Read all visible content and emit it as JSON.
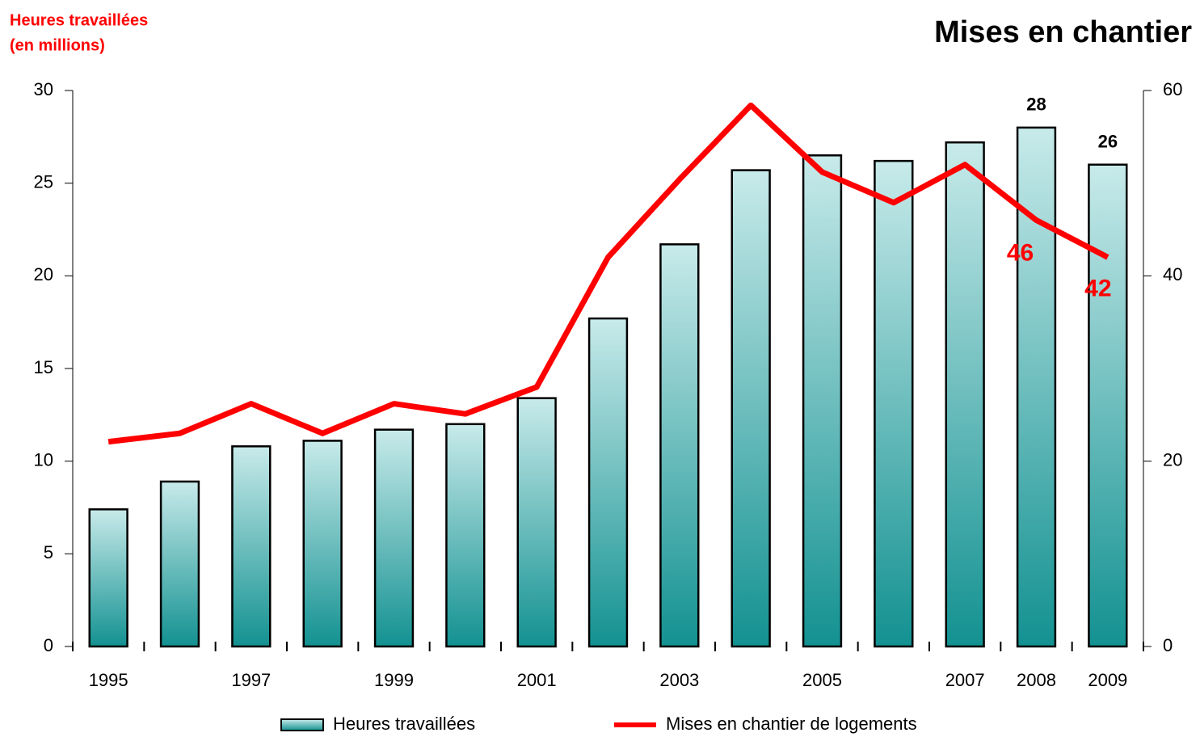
{
  "chart_data": {
    "type": "bar_line",
    "title": "Mises en chantier",
    "y_label": [
      "Heures travaillées",
      "(en millions)"
    ],
    "categories": [
      "1995",
      null,
      "1997",
      null,
      "1999",
      null,
      "2001",
      null,
      "2003",
      null,
      "2005",
      null,
      "2007",
      "2008",
      "2009"
    ],
    "series": [
      {
        "name": "Heures travaillées",
        "type": "bar",
        "color": "#139191",
        "values": [
          7.4,
          8.9,
          10.8,
          11.1,
          11.7,
          12.0,
          13.4,
          17.7,
          21.7,
          25.7,
          26.5,
          26.2,
          27.2,
          28,
          26
        ],
        "value_labels": [
          null,
          null,
          null,
          null,
          null,
          null,
          null,
          null,
          null,
          null,
          null,
          null,
          null,
          "28",
          "26"
        ]
      },
      {
        "name": "Mises en chantier de logements",
        "type": "line",
        "axis": "y2",
        "color": "#ff0000",
        "values": [
          22.1,
          23.0,
          26.2,
          23.0,
          26.2,
          25.1,
          28.0,
          42.0,
          50.4,
          58.4,
          51.2,
          47.9,
          52.0,
          46,
          42
        ],
        "value_labels": [
          null,
          null,
          null,
          null,
          null,
          null,
          null,
          null,
          null,
          null,
          null,
          null,
          null,
          "46",
          "42"
        ]
      }
    ],
    "ylim": [
      0,
      30
    ],
    "yticks": [
      0,
      5,
      10,
      15,
      20,
      25,
      30
    ],
    "y2lim": [
      0,
      60
    ],
    "y2ticks": [
      0,
      20,
      40,
      60
    ]
  }
}
